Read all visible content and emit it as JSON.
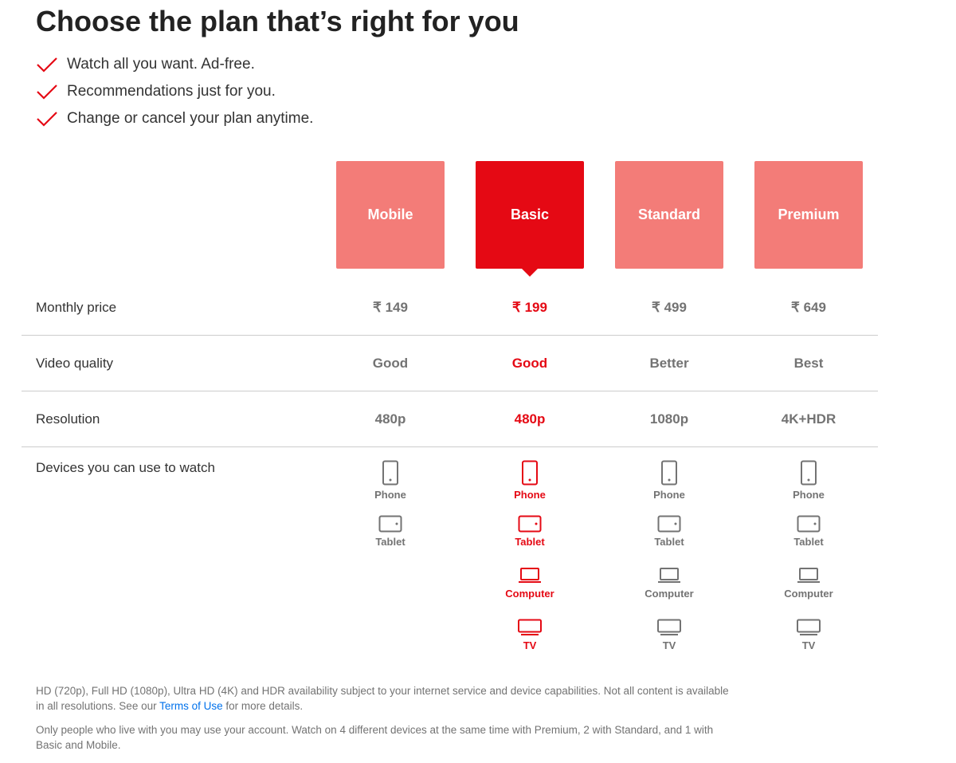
{
  "title": "Choose the plan that’s right for you",
  "benefits": [
    "Watch all you want. Ad-free.",
    "Recommendations just for you.",
    "Change or cancel your plan anytime."
  ],
  "accent_color": "#e50914",
  "unselected_color": "#f37c78",
  "selected_plan": "Basic",
  "row_labels": {
    "price": "Monthly price",
    "quality": "Video quality",
    "resolution": "Resolution",
    "devices": "Devices you can use to watch"
  },
  "plans": [
    {
      "name": "Mobile",
      "price": "₹ 149",
      "quality": "Good",
      "resolution": "480p",
      "devices": [
        "Phone",
        "Tablet"
      ]
    },
    {
      "name": "Basic",
      "price": "₹ 199",
      "quality": "Good",
      "resolution": "480p",
      "devices": [
        "Phone",
        "Tablet",
        "Computer",
        "TV"
      ]
    },
    {
      "name": "Standard",
      "price": "₹ 499",
      "quality": "Better",
      "resolution": "1080p",
      "devices": [
        "Phone",
        "Tablet",
        "Computer",
        "TV"
      ]
    },
    {
      "name": "Premium",
      "price": "₹ 649",
      "quality": "Best",
      "resolution": "4K+HDR",
      "devices": [
        "Phone",
        "Tablet",
        "Computer",
        "TV"
      ]
    }
  ],
  "footer": {
    "note1_before": "HD (720p), Full HD (1080p), Ultra HD (4K) and HDR availability subject to your internet service and device capabilities. Not all content is available in all resolutions. See our ",
    "note1_link": "Terms of Use",
    "note1_after": " for more details.",
    "note2": "Only people who live with you may use your account. Watch on 4 different devices at the same time with Premium, 2 with Standard, and 1 with Basic and Mobile."
  }
}
